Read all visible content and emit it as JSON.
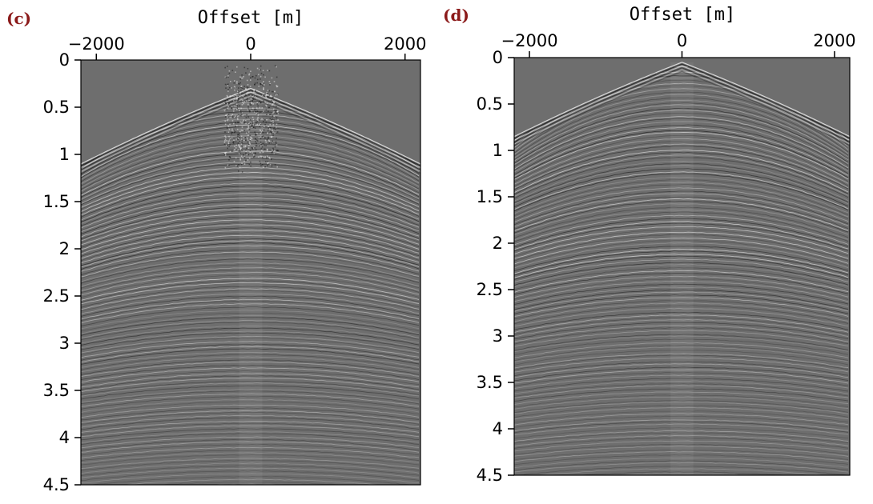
{
  "colors": {
    "background": "#ffffff",
    "plot_gray": "#6e6e6e",
    "trace_light": "#f2f2f2",
    "trace_dark": "#121212",
    "panel_label": "#8b1a1a",
    "axis": "#000000"
  },
  "chart_data": [
    {
      "type": "heatmap",
      "panel_label": "(c)",
      "xlabel": "Offset [m]",
      "ylabel": "",
      "x_axis_position": "top",
      "xlim": [
        -2200,
        2200
      ],
      "ylim": [
        0,
        4.5
      ],
      "y_inverted": true,
      "x_ticks": [
        -2000,
        0,
        2000
      ],
      "x_tick_labels": [
        "−2000",
        "0",
        "2000"
      ],
      "y_ticks": [
        0,
        0.5,
        1,
        1.5,
        2,
        2.5,
        3,
        3.5,
        4,
        4.5
      ],
      "y_tick_labels": [
        "0",
        "0.5",
        "1",
        "1.5",
        "2",
        "2.5",
        "3",
        "3.5",
        "4",
        "4.5"
      ],
      "colormap": "gray",
      "first_arrival_apex_time": 0.3,
      "noisy_near_offset": true
    },
    {
      "type": "heatmap",
      "panel_label": "(d)",
      "xlabel": "Offset [m]",
      "ylabel": "",
      "x_axis_position": "top",
      "xlim": [
        -2200,
        2200
      ],
      "ylim": [
        0,
        4.5
      ],
      "y_inverted": true,
      "x_ticks": [
        -2000,
        0,
        2000
      ],
      "x_tick_labels": [
        "−2000",
        "0",
        "2000"
      ],
      "y_ticks": [
        0,
        0.5,
        1,
        1.5,
        2,
        2.5,
        3,
        3.5,
        4,
        4.5
      ],
      "y_tick_labels": [
        "0",
        "0.5",
        "1",
        "1.5",
        "2",
        "2.5",
        "3",
        "3.5",
        "4",
        "4.5"
      ],
      "colormap": "gray",
      "first_arrival_apex_time": 0.05,
      "noisy_near_offset": false
    }
  ]
}
